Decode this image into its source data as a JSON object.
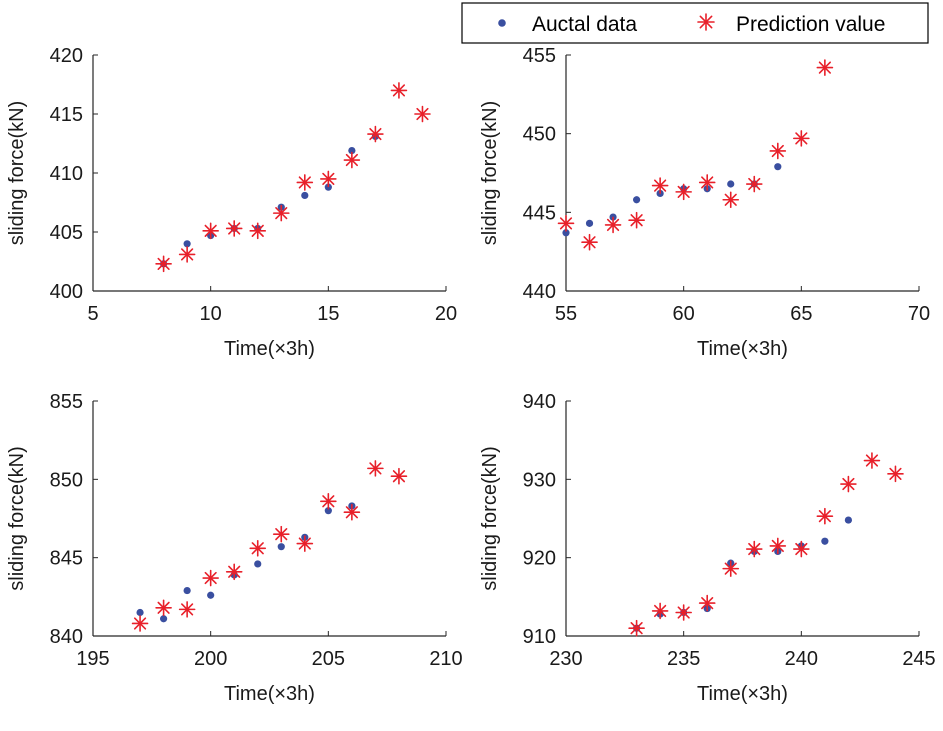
{
  "legend": {
    "entries": [
      {
        "label": "Auctal data",
        "marker": "dot",
        "color": "#3a4fa0"
      },
      {
        "label": "Prediction value",
        "marker": "asterisk",
        "color": "#e8202a"
      }
    ]
  },
  "chart_data": [
    {
      "type": "scatter",
      "xlabel": "Time(×3h)",
      "ylabel": "sliding force(kN)",
      "xlim": [
        5,
        20
      ],
      "ylim": [
        400,
        420
      ],
      "xticks": [
        5,
        10,
        15,
        20
      ],
      "yticks": [
        400,
        405,
        410,
        415,
        420
      ],
      "grid": false,
      "series": [
        {
          "name": "Auctal data",
          "marker": "dot",
          "color": "#3a4fa0",
          "x": [
            8,
            9,
            10,
            11,
            12,
            13,
            14,
            15,
            16,
            17
          ],
          "y": [
            402.3,
            404.0,
            404.7,
            405.3,
            405.3,
            407.1,
            408.1,
            408.8,
            411.9,
            413.1
          ]
        },
        {
          "name": "Prediction value",
          "marker": "asterisk",
          "color": "#e8202a",
          "x": [
            8,
            9,
            10,
            11,
            12,
            13,
            14,
            15,
            16,
            17,
            18,
            19
          ],
          "y": [
            402.3,
            403.1,
            405.1,
            405.3,
            405.1,
            406.6,
            409.2,
            409.5,
            411.1,
            413.3,
            417.0,
            415.0
          ]
        }
      ]
    },
    {
      "type": "scatter",
      "xlabel": "Time(×3h)",
      "ylabel": "sliding force(kN)",
      "xlim": [
        55,
        70
      ],
      "ylim": [
        440,
        455
      ],
      "xticks": [
        55,
        60,
        65,
        70
      ],
      "yticks": [
        440,
        445,
        450,
        455
      ],
      "grid": false,
      "series": [
        {
          "name": "Auctal data",
          "marker": "dot",
          "color": "#3a4fa0",
          "x": [
            55,
            56,
            57,
            58,
            59,
            60,
            61,
            62,
            63,
            64
          ],
          "y": [
            443.7,
            444.3,
            444.7,
            445.8,
            446.2,
            446.5,
            446.5,
            446.8,
            446.8,
            447.9
          ]
        },
        {
          "name": "Prediction value",
          "marker": "asterisk",
          "color": "#e8202a",
          "x": [
            55,
            56,
            57,
            58,
            59,
            60,
            61,
            62,
            63,
            64,
            65,
            66
          ],
          "y": [
            444.3,
            443.1,
            444.2,
            444.5,
            446.7,
            446.3,
            446.9,
            445.8,
            446.8,
            448.9,
            449.7,
            454.2
          ]
        }
      ]
    },
    {
      "type": "scatter",
      "xlabel": "Time(×3h)",
      "ylabel": "sliding force(kN)",
      "xlim": [
        195,
        210
      ],
      "ylim": [
        840,
        855
      ],
      "xticks": [
        195,
        200,
        205,
        210
      ],
      "yticks": [
        840,
        845,
        850,
        855
      ],
      "grid": false,
      "series": [
        {
          "name": "Auctal data",
          "marker": "dot",
          "color": "#3a4fa0",
          "x": [
            197,
            198,
            199,
            200,
            201,
            202,
            203,
            204,
            205,
            206
          ],
          "y": [
            841.5,
            841.1,
            842.9,
            842.6,
            843.9,
            844.6,
            845.7,
            846.3,
            848.0,
            848.3
          ]
        },
        {
          "name": "Prediction value",
          "marker": "asterisk",
          "color": "#e8202a",
          "x": [
            197,
            198,
            199,
            200,
            201,
            202,
            203,
            204,
            205,
            206,
            207,
            208
          ],
          "y": [
            840.8,
            841.8,
            841.7,
            843.7,
            844.1,
            845.6,
            846.5,
            845.9,
            848.6,
            847.9,
            850.7,
            850.2
          ]
        }
      ]
    },
    {
      "type": "scatter",
      "xlabel": "Time(×3h)",
      "ylabel": "sliding force(kN)",
      "xlim": [
        230,
        245
      ],
      "ylim": [
        910,
        940
      ],
      "xticks": [
        230,
        235,
        240,
        245
      ],
      "yticks": [
        910,
        920,
        930,
        940
      ],
      "grid": false,
      "series": [
        {
          "name": "Auctal data",
          "marker": "dot",
          "color": "#3a4fa0",
          "x": [
            233,
            234,
            235,
            236,
            237,
            238,
            239,
            240,
            241,
            242
          ],
          "y": [
            911.0,
            912.8,
            913.0,
            913.5,
            919.3,
            920.8,
            920.8,
            921.5,
            922.1,
            924.8
          ]
        },
        {
          "name": "Prediction value",
          "marker": "asterisk",
          "color": "#e8202a",
          "x": [
            233,
            234,
            235,
            236,
            237,
            238,
            239,
            240,
            241,
            242,
            243,
            244
          ],
          "y": [
            911.0,
            913.2,
            913.0,
            914.2,
            918.6,
            921.1,
            921.5,
            921.1,
            925.3,
            929.4,
            932.4,
            930.7
          ]
        }
      ]
    }
  ]
}
